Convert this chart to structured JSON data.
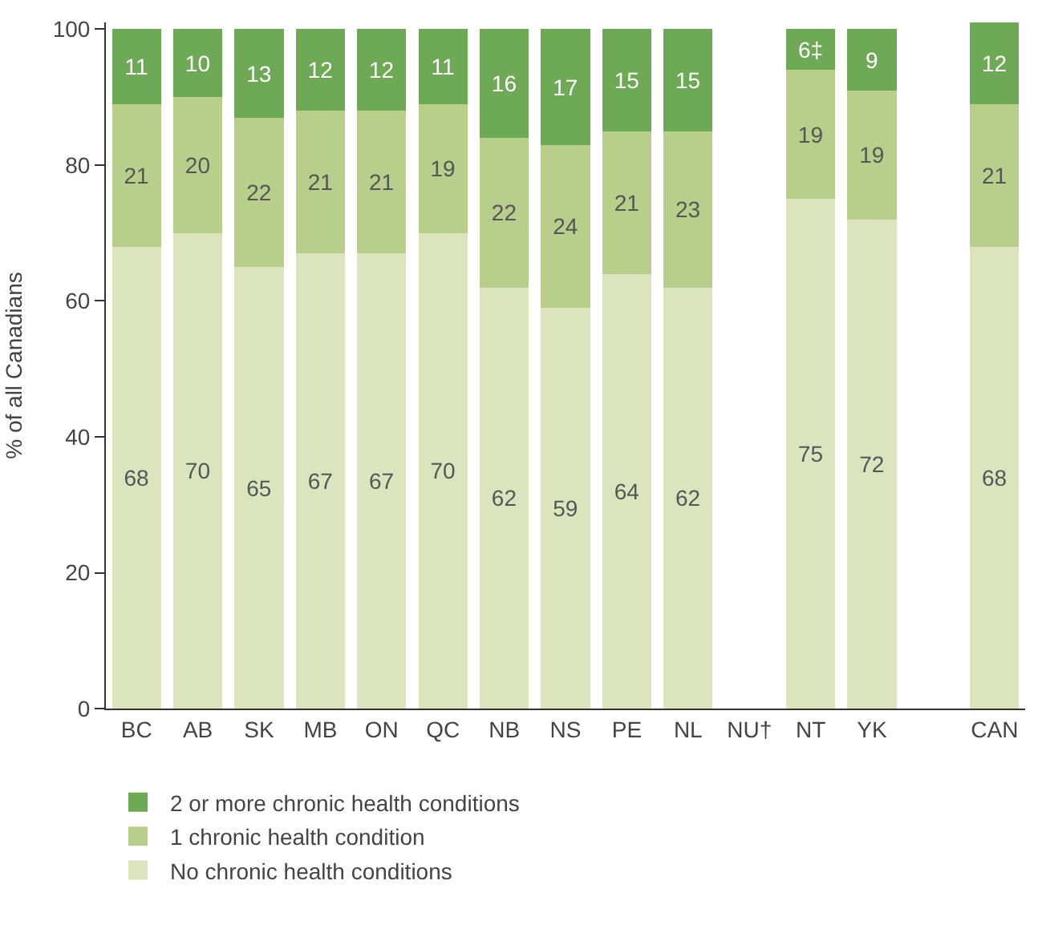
{
  "chart_data": {
    "type": "bar",
    "stacked": true,
    "ylabel": "% of all Canadians",
    "categories": [
      "BC",
      "AB",
      "SK",
      "MB",
      "ON",
      "QC",
      "NB",
      "NS",
      "PE",
      "NL",
      "NU†",
      "NT",
      "YK",
      null,
      "CAN"
    ],
    "series": [
      {
        "name": "No chronic health conditions",
        "color": "#dbe4bd",
        "values": [
          68,
          70,
          65,
          67,
          67,
          70,
          62,
          59,
          64,
          62,
          null,
          75,
          72,
          null,
          68
        ]
      },
      {
        "name": "1 chronic health condition",
        "color": "#b7cf8b",
        "values": [
          21,
          20,
          22,
          21,
          21,
          19,
          22,
          24,
          21,
          23,
          null,
          19,
          19,
          null,
          21
        ]
      },
      {
        "name": "2 or more chronic health conditions",
        "color": "#6ea956",
        "values": [
          11,
          10,
          13,
          12,
          12,
          11,
          16,
          17,
          15,
          15,
          null,
          6,
          9,
          null,
          12
        ],
        "value_labels": [
          "11",
          "10",
          "13",
          "12",
          "12",
          "11",
          "16",
          "17",
          "15",
          "15",
          null,
          "6‡",
          "9",
          null,
          "12"
        ]
      }
    ],
    "data_labels": true,
    "ylim": [
      0,
      101
    ],
    "yticks": [
      0,
      20,
      40,
      60,
      80,
      100
    ],
    "legend": "bottom"
  }
}
